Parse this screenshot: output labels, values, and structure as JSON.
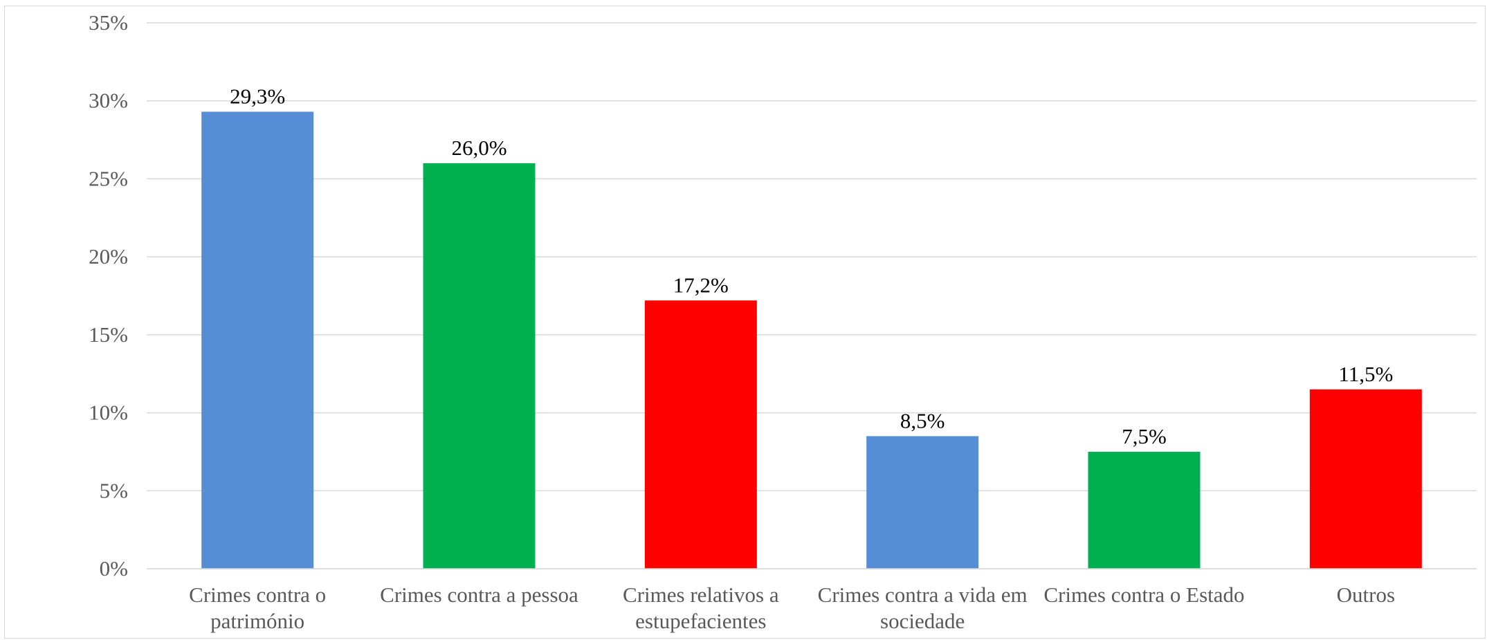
{
  "chart_data": {
    "type": "bar",
    "categories": [
      [
        "Crimes contra o",
        "património"
      ],
      [
        "Crimes contra a pessoa"
      ],
      [
        "Crimes relativos a",
        "estupefacientes"
      ],
      [
        "Crimes contra a vida em",
        "sociedade"
      ],
      [
        "Crimes contra o Estado"
      ],
      [
        "Outros"
      ]
    ],
    "values": [
      29.3,
      26.0,
      17.2,
      8.5,
      7.5,
      11.5
    ],
    "data_labels": [
      "29,3%",
      "26,0%",
      "17,2%",
      "8,5%",
      "7,5%",
      "11,5%"
    ],
    "bar_colors": [
      "#558ED5",
      "#00B050",
      "#FF0000",
      "#558ED5",
      "#00B050",
      "#FF0000"
    ],
    "ylim": [
      0,
      35
    ],
    "yticks": [
      0,
      5,
      10,
      15,
      20,
      25,
      30,
      35
    ],
    "ytick_labels": [
      "0%",
      "5%",
      "10%",
      "15%",
      "20%",
      "25%",
      "30%",
      "35%"
    ],
    "grid": true,
    "legend": "none"
  }
}
